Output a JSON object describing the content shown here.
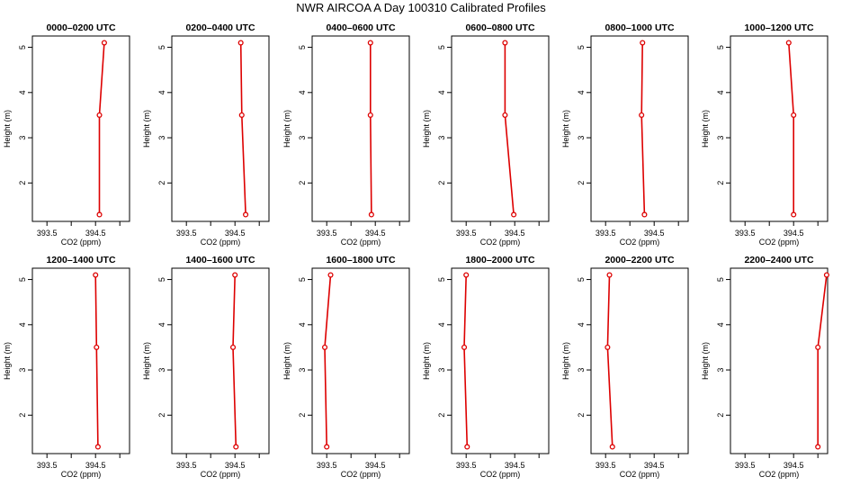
{
  "title": "NWR AIRCOA A  Day 100310  Calibrated Profiles",
  "chart_data": {
    "type": "line",
    "layout": "2x6 small multiples",
    "xlabel": "CO2 (ppm)",
    "ylabel": "Height (m)",
    "xticks": [
      "393.5",
      "394.5"
    ],
    "yticks": [
      "2",
      "3",
      "4",
      "5"
    ],
    "xlim": [
      393.2,
      395.2
    ],
    "ylim": [
      1.15,
      5.25
    ],
    "series_color": "#dd0000",
    "panels": [
      {
        "title": "0000–0200 UTC",
        "x": [
          394.58,
          394.58,
          394.68
        ],
        "y": [
          1.3,
          3.5,
          5.1
        ]
      },
      {
        "title": "0200–0400 UTC",
        "x": [
          394.72,
          394.64,
          394.62
        ],
        "y": [
          1.3,
          3.5,
          5.1
        ]
      },
      {
        "title": "0400–0600 UTC",
        "x": [
          394.42,
          394.4,
          394.4
        ],
        "y": [
          1.3,
          3.5,
          5.1
        ]
      },
      {
        "title": "0600–0800 UTC",
        "x": [
          394.48,
          394.3,
          394.3
        ],
        "y": [
          1.3,
          3.5,
          5.1
        ]
      },
      {
        "title": "0800–1000 UTC",
        "x": [
          394.3,
          394.24,
          394.26
        ],
        "y": [
          1.3,
          3.5,
          5.1
        ]
      },
      {
        "title": "1000–1200 UTC",
        "x": [
          394.5,
          394.5,
          394.4
        ],
        "y": [
          1.3,
          3.5,
          5.1
        ]
      },
      {
        "title": "1200–1400 UTC",
        "x": [
          394.55,
          394.52,
          394.5
        ],
        "y": [
          1.3,
          3.5,
          5.1
        ]
      },
      {
        "title": "1400–1600 UTC",
        "x": [
          394.52,
          394.46,
          394.5
        ],
        "y": [
          1.3,
          3.5,
          5.1
        ]
      },
      {
        "title": "1600–1800 UTC",
        "x": [
          393.5,
          393.46,
          393.58
        ],
        "y": [
          1.3,
          3.5,
          5.1
        ]
      },
      {
        "title": "1800–2000 UTC",
        "x": [
          393.52,
          393.46,
          393.5
        ],
        "y": [
          1.3,
          3.5,
          5.1
        ]
      },
      {
        "title": "2000–2200 UTC",
        "x": [
          393.64,
          393.54,
          393.58
        ],
        "y": [
          1.3,
          3.5,
          5.1
        ]
      },
      {
        "title": "2200–2400 UTC",
        "x": [
          395.0,
          395.0,
          395.18
        ],
        "y": [
          1.3,
          3.5,
          5.1
        ]
      }
    ]
  }
}
